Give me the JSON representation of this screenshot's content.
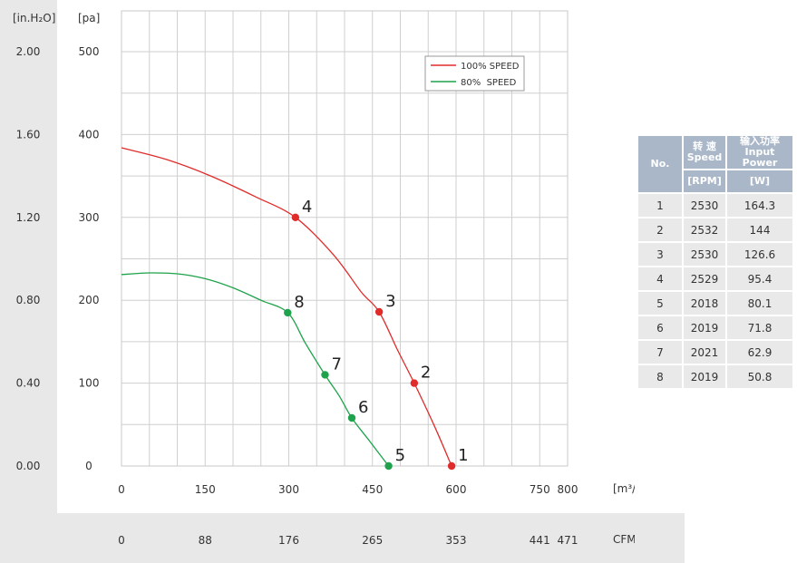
{
  "units": {
    "y_left": "[in.H₂O]",
    "y_right": "[pa]",
    "x_flow": "[m³/h]",
    "x_cfm": "CFM"
  },
  "legend": [
    {
      "label": "100% SPEED",
      "color": "#e02b2b"
    },
    {
      "label": "80%  SPEED",
      "color": "#1ea24b"
    }
  ],
  "table": {
    "headers": {
      "no": "No.",
      "speed_cn": "转 速",
      "speed_en": "Speed",
      "power_cn": "输入功率",
      "power_en": "Input Power",
      "speed_unit": "[RPM]",
      "power_unit": "[W]"
    },
    "rows": [
      {
        "no": "1",
        "rpm": "2530",
        "watt": "164.3"
      },
      {
        "no": "2",
        "rpm": "2532",
        "watt": "144"
      },
      {
        "no": "3",
        "rpm": "2530",
        "watt": "126.6"
      },
      {
        "no": "4",
        "rpm": "2529",
        "watt": "95.4"
      },
      {
        "no": "5",
        "rpm": "2018",
        "watt": "80.1"
      },
      {
        "no": "6",
        "rpm": "2019",
        "watt": "71.8"
      },
      {
        "no": "7",
        "rpm": "2021",
        "watt": "62.9"
      },
      {
        "no": "8",
        "rpm": "2019",
        "watt": "50.8"
      }
    ]
  },
  "chart_data": {
    "type": "line",
    "xlabel": "[m³/h]",
    "ylabel": "[pa]",
    "xlim": [
      0,
      800
    ],
    "ylim": [
      0,
      550
    ],
    "x_ticks": [
      0,
      150,
      300,
      450,
      600,
      750,
      800
    ],
    "x_tick_labels": [
      "0",
      "150",
      "300",
      "450",
      "600",
      "750",
      "800"
    ],
    "cfm_tick_labels": [
      "0",
      "88",
      "176",
      "265",
      "353",
      "441",
      "471"
    ],
    "y_ticks": [
      0,
      100,
      200,
      300,
      400,
      500
    ],
    "y_tick_labels": [
      "0",
      "100",
      "200",
      "300",
      "400",
      "500"
    ],
    "inh2o_tick_labels": [
      "0.00",
      "0.40",
      "0.80",
      "1.20",
      "1.60",
      "2.00"
    ],
    "grid": true,
    "legend_position": "top-right",
    "series": [
      {
        "name": "100% SPEED",
        "color": "#e02b2b",
        "curve": [
          [
            0,
            384
          ],
          [
            80,
            370
          ],
          [
            160,
            350
          ],
          [
            240,
            325
          ],
          [
            312,
            300
          ],
          [
            380,
            255
          ],
          [
            430,
            210
          ],
          [
            462,
            186
          ],
          [
            495,
            140
          ],
          [
            525,
            100
          ],
          [
            560,
            50
          ],
          [
            592,
            0
          ]
        ],
        "points": [
          {
            "label": "1",
            "x": 592,
            "y": 0
          },
          {
            "label": "2",
            "x": 525,
            "y": 100
          },
          {
            "label": "3",
            "x": 462,
            "y": 186
          },
          {
            "label": "4",
            "x": 312,
            "y": 300
          }
        ]
      },
      {
        "name": "80%  SPEED",
        "color": "#1ea24b",
        "curve": [
          [
            0,
            231
          ],
          [
            50,
            233
          ],
          [
            100,
            232
          ],
          [
            150,
            226
          ],
          [
            200,
            215
          ],
          [
            250,
            200
          ],
          [
            298,
            185
          ],
          [
            330,
            148
          ],
          [
            365,
            110
          ],
          [
            390,
            85
          ],
          [
            413,
            58
          ],
          [
            445,
            30
          ],
          [
            479,
            0
          ]
        ],
        "points": [
          {
            "label": "5",
            "x": 479,
            "y": 0
          },
          {
            "label": "6",
            "x": 413,
            "y": 58
          },
          {
            "label": "7",
            "x": 365,
            "y": 110
          },
          {
            "label": "8",
            "x": 298,
            "y": 185
          }
        ]
      }
    ]
  }
}
